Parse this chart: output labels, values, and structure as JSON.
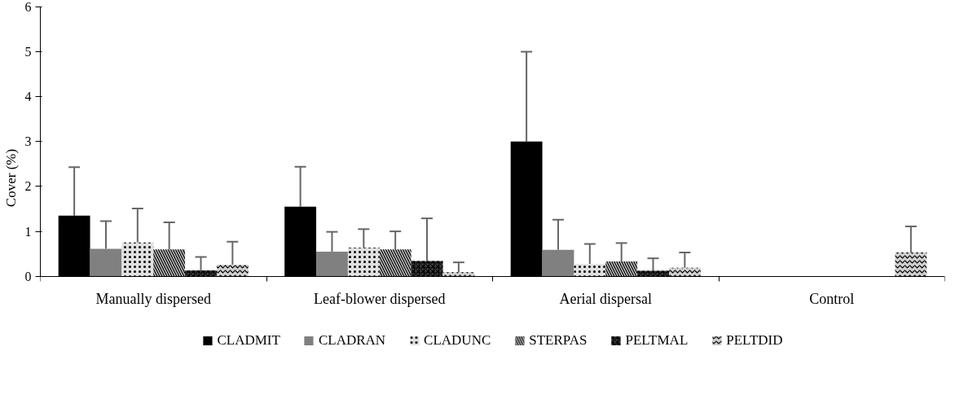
{
  "chart_data": {
    "type": "bar",
    "ylabel": "Cover (%)",
    "categories": [
      "Manually dispersed",
      "Leaf-blower dispersed",
      "Aerial dispersal",
      "Control"
    ],
    "ylim": [
      0,
      6
    ],
    "yticks": [
      0,
      1,
      2,
      3,
      4,
      5,
      6
    ],
    "grid": false,
    "legend": "bottom",
    "series": [
      {
        "name": "CLADMIT",
        "color": "#000000",
        "values": [
          1.35,
          1.55,
          3.0,
          0
        ],
        "errors": [
          [
            1.35,
            2.43
          ],
          [
            1.55,
            2.44
          ],
          [
            3.0,
            5.0
          ],
          null
        ]
      },
      {
        "name": "CLADRAN",
        "color": "#808080",
        "values": [
          0.61,
          0.55,
          0.59,
          0
        ],
        "errors": [
          [
            0.61,
            1.23
          ],
          [
            0.55,
            0.99
          ],
          [
            0.59,
            1.26
          ],
          null
        ]
      },
      {
        "name": "CLADUNC",
        "color": "#e0e0e0",
        "values": [
          0.75,
          0.64,
          0.27,
          0
        ],
        "errors": [
          [
            0.75,
            1.51
          ],
          [
            0.64,
            1.05
          ],
          [
            0.27,
            0.72
          ],
          null
        ]
      },
      {
        "name": "STERPAS",
        "color": "#bfbfbf",
        "values": [
          0.6,
          0.6,
          0.33,
          0
        ],
        "errors": [
          [
            0.6,
            1.2
          ],
          [
            0.6,
            1.0
          ],
          [
            0.33,
            0.74
          ],
          null
        ]
      },
      {
        "name": "PELTMAL",
        "color": "#555555",
        "values": [
          0.13,
          0.34,
          0.12,
          0
        ],
        "errors": [
          [
            0.13,
            0.43
          ],
          [
            0.34,
            1.29
          ],
          [
            0.12,
            0.4
          ],
          null
        ]
      },
      {
        "name": "PELTDID",
        "color": "#d0d0d0",
        "values": [
          0.26,
          0.09,
          0.19,
          0.53
        ],
        "errors": [
          [
            0.26,
            0.77
          ],
          [
            0.09,
            0.31
          ],
          [
            0.19,
            0.53
          ],
          [
            0.53,
            1.11
          ]
        ]
      }
    ]
  }
}
